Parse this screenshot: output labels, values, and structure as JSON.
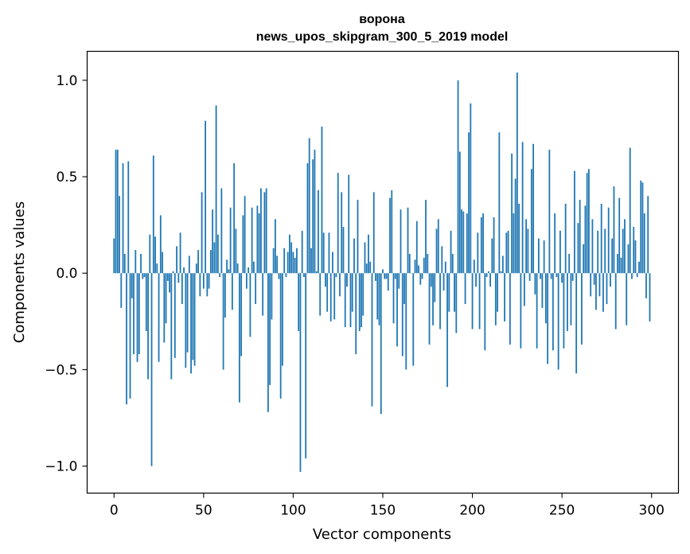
{
  "chart_data": {
    "type": "bar",
    "title_line1": "ворона",
    "title_line2": "news_upos_skipgram_300_5_2019 model",
    "xlabel": "Vector components",
    "ylabel": "Components values",
    "xlim": [
      -15,
      315
    ],
    "ylim": [
      -1.14,
      1.15
    ],
    "xticks": [
      0,
      50,
      100,
      150,
      200,
      250,
      300
    ],
    "xtick_labels": [
      "0",
      "50",
      "100",
      "150",
      "200",
      "250",
      "300"
    ],
    "yticks": [
      -1.0,
      -0.5,
      0.0,
      0.5,
      1.0
    ],
    "ytick_labels": [
      "−1.0",
      "−0.5",
      "0.0",
      "0.5",
      "1.0"
    ],
    "bar_color": "#1f77b4",
    "values": [
      0.18,
      0.64,
      0.64,
      0.4,
      -0.18,
      0.57,
      0.1,
      -0.68,
      0.58,
      -0.65,
      -0.13,
      -0.42,
      0.12,
      -0.46,
      -0.42,
      0.1,
      -0.03,
      -0.02,
      -0.3,
      -0.55,
      0.2,
      -1.0,
      0.61,
      0.19,
      0.05,
      -0.46,
      0.3,
      0.11,
      -0.36,
      -0.26,
      -0.04,
      -0.1,
      -0.55,
      0.01,
      -0.44,
      0.14,
      -0.05,
      0.21,
      -0.16,
      0.03,
      -0.49,
      -0.41,
      0.09,
      -0.52,
      -0.45,
      -0.48,
      0.05,
      0.12,
      -0.12,
      0.42,
      -0.08,
      0.79,
      -0.12,
      -0.08,
      0.12,
      0.33,
      0.16,
      0.87,
      0.2,
      -0.02,
      0.44,
      -0.5,
      -0.23,
      0.07,
      0.02,
      0.34,
      -0.19,
      0.57,
      0.23,
      0.05,
      -0.67,
      -0.43,
      0.3,
      0.4,
      -0.08,
      0.03,
      -0.33,
      0.34,
      0.06,
      -0.16,
      0.35,
      0.31,
      0.44,
      -0.22,
      0.42,
      0.44,
      -0.72,
      -0.58,
      -0.24,
      0.13,
      0.28,
      0.09,
      -0.03,
      -0.65,
      -0.48,
      0.13,
      -0.02,
      0.11,
      0.2,
      0.16,
      0.11,
      0.08,
      0.13,
      -0.3,
      -1.03,
      0.22,
      -0.02,
      -0.96,
      0.57,
      0.7,
      0.13,
      0.59,
      0.64,
      0.01,
      0.43,
      -0.22,
      0.76,
      0.21,
      -0.07,
      -0.2,
      0.21,
      -0.25,
      0.11,
      -0.24,
      -0.02,
      0.52,
      -0.12,
      0.42,
      0.24,
      -0.28,
      -0.07,
      0.51,
      -0.28,
      -0.2,
      0.18,
      -0.42,
      0.38,
      -0.3,
      -0.28,
      -0.22,
      0.16,
      0.05,
      0.2,
      0.06,
      -0.69,
      0.42,
      -0.04,
      -0.24,
      -0.27,
      -0.73,
      0.02,
      -0.03,
      -0.03,
      -0.09,
      0.39,
      0.43,
      -0.26,
      -0.03,
      -0.38,
      -0.08,
      0.33,
      -0.43,
      -0.16,
      -0.5,
      0.34,
      0.1,
      0.0,
      -0.48,
      0.07,
      0.27,
      0.04,
      -0.06,
      -0.03,
      0.08,
      0.38,
      0.1,
      -0.37,
      -0.07,
      -0.27,
      -0.15,
      0.23,
      0.28,
      -0.29,
      0.14,
      -0.09,
      0.06,
      -0.59,
      -0.2,
      0.22,
      0.1,
      -0.2,
      -0.31,
      1.0,
      0.63,
      0.33,
      0.32,
      -0.16,
      0.31,
      0.73,
      0.88,
      -0.29,
      0.07,
      -0.07,
      0.21,
      -0.29,
      0.29,
      0.31,
      -0.4,
      -0.02,
      0.01,
      -0.07,
      0.18,
      0.29,
      -0.27,
      -0.2,
      0.73,
      0.01,
      0.09,
      -0.25,
      0.21,
      0.22,
      -0.37,
      0.62,
      0.31,
      0.49,
      1.04,
      0.36,
      -0.39,
      0.68,
      -0.17,
      0.28,
      0.23,
      -0.04,
      0.54,
      0.67,
      -0.11,
      -0.39,
      0.18,
      -0.03,
      -0.18,
      0.17,
      -0.26,
      -0.47,
      0.64,
      -0.03,
      -0.4,
      0.31,
      -0.02,
      -0.5,
      0.22,
      -0.05,
      -0.39,
      0.36,
      -0.3,
      0.1,
      -0.27,
      -0.04,
      0.53,
      -0.52,
      0.26,
      0.38,
      -0.37,
      0.15,
      0.35,
      0.52,
      0.54,
      -0.12,
      0.28,
      -0.06,
      -0.19,
      0.22,
      -0.12,
      0.36,
      -0.2,
      0.23,
      -0.16,
      0.34,
      -0.07,
      0.18,
      0.45,
      -0.29,
      0.1,
      0.39,
      0.08,
      0.23,
      0.28,
      -0.27,
      0.15,
      0.65,
      -0.03,
      0.24,
      0.17,
      -0.02,
      0.06,
      0.48,
      0.47,
      0.31,
      -0.13,
      0.4,
      -0.25
    ]
  }
}
